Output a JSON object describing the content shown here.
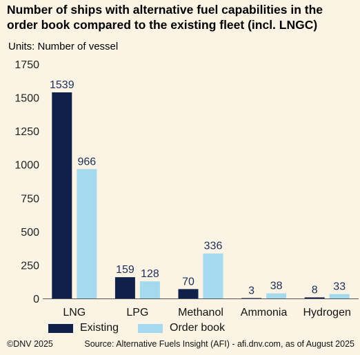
{
  "header": {
    "title": "Number of ships with alternative fuel capabilities in the order book compared to the existing fleet (incl. LNGC)",
    "units": "Units: Number of vessel"
  },
  "footer": {
    "copyright": "©DNV 2025",
    "source": "Source: Alternative Fuels Insight (AFI) - afi.dnv.com, as of August 2025"
  },
  "chart_data": {
    "type": "bar",
    "title": "Number of ships with alternative fuel capabilities in the order book compared to the existing fleet (incl. LNGC)",
    "ylabel": "Units: Number of vessel",
    "xlabel": "",
    "categories": [
      "LNG",
      "LPG",
      "Methanol",
      "Ammonia",
      "Hydrogen"
    ],
    "series": [
      {
        "name": "Existing",
        "values": [
          1539,
          159,
          70,
          3,
          8
        ],
        "color": "#0f204b"
      },
      {
        "name": "Order book",
        "values": [
          966,
          128,
          336,
          38,
          33
        ],
        "color": "#a5d9ee"
      }
    ],
    "ylim": [
      0,
      1750
    ],
    "yticks": [
      0,
      250,
      500,
      750,
      1000,
      1250,
      1500,
      1750
    ],
    "grid": false,
    "legend": "bottom"
  }
}
